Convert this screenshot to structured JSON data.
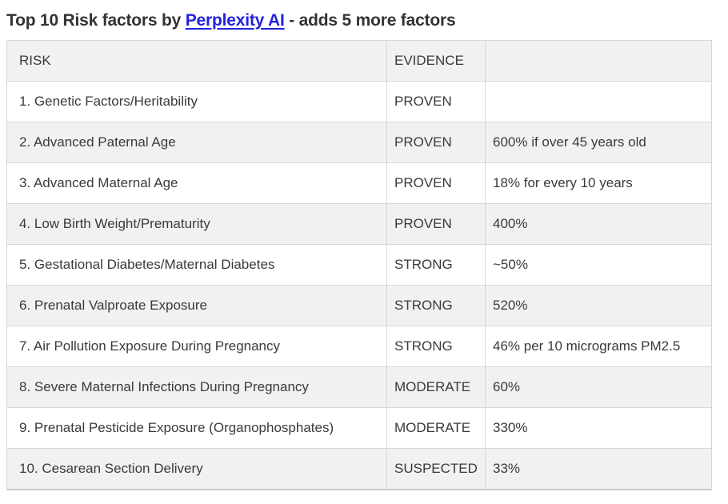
{
  "page": {
    "title_prefix": "Top 10 Risk factors by ",
    "title_link": "Perplexity AI",
    "title_suffix": " - adds 5 more factors"
  },
  "table": {
    "columns": [
      "RISK",
      "EVIDENCE",
      ""
    ],
    "rows": [
      {
        "risk": "1. Genetic Factors/Heritability",
        "evidence": "PROVEN",
        "detail": ""
      },
      {
        "risk": "2. Advanced Paternal Age",
        "evidence": "PROVEN",
        "detail": "600% if over 45 years old"
      },
      {
        "risk": "3. Advanced Maternal Age",
        "evidence": "PROVEN",
        "detail": "18% for every 10 years"
      },
      {
        "risk": "4. Low Birth Weight/Prematurity",
        "evidence": "PROVEN",
        "detail": "400%"
      },
      {
        "risk": "5. Gestational Diabetes/Maternal Diabetes",
        "evidence": "STRONG",
        "detail": "~50%"
      },
      {
        "risk": "6. Prenatal Valproate Exposure",
        "evidence": "STRONG",
        "detail": "520%"
      },
      {
        "risk": "7. Air Pollution Exposure During Pregnancy",
        "evidence": "STRONG",
        "detail": "46% per 10 micrograms PM2.5"
      },
      {
        "risk": "8. Severe Maternal Infections During Pregnancy",
        "evidence": "MODERATE",
        "detail": "60%"
      },
      {
        "risk": "9. Prenatal Pesticide Exposure (Organophosphates)",
        "evidence": "MODERATE",
        "detail": "330%"
      },
      {
        "risk": "10. Cesarean Section Delivery",
        "evidence": "SUSPECTED",
        "detail": "33%"
      }
    ]
  },
  "colors": {
    "link": "#2222dd",
    "stripe": "#f1f1f1",
    "border": "#d7d7d7",
    "text": "#3a3a3a",
    "title": "#333333"
  }
}
